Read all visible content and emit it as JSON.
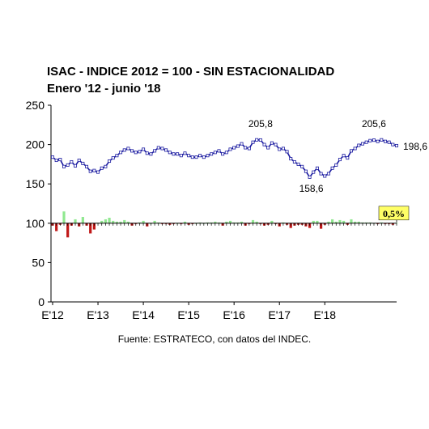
{
  "chart_data": {
    "type": "line",
    "title": "ISAC - INDICE 2012 = 100 - SIN ESTACIONALIDAD",
    "subtitle": "Enero '12 - junio '18",
    "source": "Fuente: ESTRATECO, con datos del INDEC.",
    "xlabel": "",
    "ylabel": "",
    "ylim": [
      0,
      250
    ],
    "yticks": [
      "0",
      "50",
      "100",
      "150",
      "200",
      "250"
    ],
    "xticks": [
      {
        "label": "E'12",
        "index": 0
      },
      {
        "label": "E'13",
        "index": 12
      },
      {
        "label": "E'14",
        "index": 24
      },
      {
        "label": "E'15",
        "index": 36
      },
      {
        "label": "E'16",
        "index": 48
      },
      {
        "label": "E'17",
        "index": 60
      },
      {
        "label": "E'18",
        "index": 72
      }
    ],
    "grid": false,
    "legend": "none",
    "colors": {
      "index_line": "#1a1aa0",
      "marker_fill": "#ffffff",
      "bar_positive": "#90e890",
      "bar_negative": "#c01818",
      "badge_fill": "#ffff66"
    },
    "series": [
      {
        "name": "",
        "type": "line",
        "values": [
          184,
          180,
          181,
          172,
          174,
          178,
          173,
          180,
          176,
          172,
          166,
          167,
          165,
          170,
          172,
          179,
          183,
          186,
          190,
          193,
          195,
          192,
          190,
          191,
          194,
          189,
          188,
          192,
          196,
          195,
          193,
          190,
          188,
          188,
          186,
          189,
          186,
          184,
          184,
          186,
          184,
          186,
          188,
          190,
          192,
          188,
          190,
          194,
          196,
          198,
          201,
          196,
          195,
          203,
          206,
          205.8,
          200,
          196,
          202,
          200,
          194,
          195,
          191,
          182,
          178,
          175,
          172,
          166,
          158.6,
          165,
          170,
          163,
          160,
          163,
          170,
          174,
          181,
          186,
          183,
          192,
          195,
          199,
          201,
          203,
          205,
          205.6,
          204,
          206,
          204,
          203,
          200,
          198.6
        ],
        "timeline_note": "ordered left to right across the axis"
      },
      {
        "name": "",
        "type": "bar",
        "baseline": 100,
        "unit": "% monthly change (scaled)",
        "values": [
          -3,
          -10,
          -2,
          15,
          -18,
          -3,
          5,
          -4,
          8,
          -3,
          -13,
          -8,
          0.6,
          3,
          5,
          7,
          3,
          2,
          2,
          4,
          2,
          -3,
          -1,
          1,
          3,
          -4,
          0,
          3,
          1,
          -1,
          -1,
          -2,
          -1,
          0,
          -1,
          2,
          -2,
          -1,
          0,
          1,
          0,
          1,
          1,
          2,
          1,
          -3,
          2,
          3,
          1,
          1,
          2,
          -3,
          -1,
          4,
          2,
          -1,
          -3,
          -2,
          3,
          -1,
          -4,
          1,
          -2,
          -6,
          -3,
          -2,
          -2,
          -4,
          -6,
          3,
          3,
          -7,
          -2,
          2,
          5,
          2,
          4,
          3,
          -2,
          5,
          2,
          2,
          1,
          1,
          1,
          0.2,
          -1,
          1,
          -1,
          -1,
          -2,
          0.5
        ]
      }
    ],
    "annotations": [
      {
        "text": "205,8",
        "series": 0,
        "point": 55
      },
      {
        "text": "158,6",
        "series": 0,
        "point": 68
      },
      {
        "text": "205,6",
        "series": 0,
        "point": 85
      },
      {
        "text": "198,6",
        "series": 0,
        "point": 91
      }
    ],
    "badge": {
      "text": "0,5%"
    }
  }
}
